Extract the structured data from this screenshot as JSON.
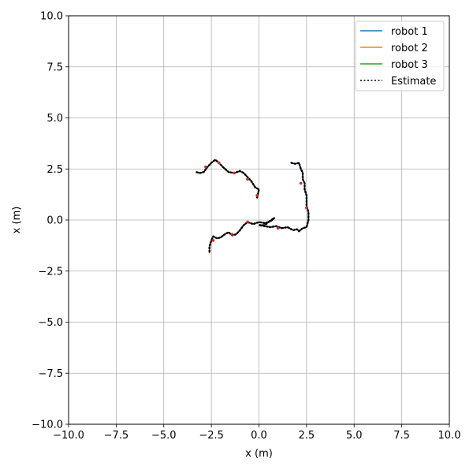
{
  "chart_data": {
    "type": "line",
    "title": "",
    "xlabel": "x (m)",
    "ylabel": "x (m)",
    "xlim": [
      -10,
      10
    ],
    "ylim": [
      -10,
      10
    ],
    "grid": true,
    "legend_position": "top-right",
    "xticks": [
      -10,
      -7.5,
      -5,
      -2.5,
      0,
      2.5,
      5,
      7.5,
      10
    ],
    "yticks": [
      -10,
      -7.5,
      -5,
      -2.5,
      0,
      2.5,
      5,
      7.5,
      10
    ],
    "xtick_labels": [
      "−10.0",
      "−7.5",
      "−5.0",
      "−2.5",
      "0.0",
      "2.5",
      "5.0",
      "7.5",
      "10.0"
    ],
    "ytick_labels": [
      "−10.0",
      "−7.5",
      "−5.0",
      "−2.5",
      "0.0",
      "2.5",
      "5.0",
      "7.5",
      "10.0"
    ],
    "series": [
      {
        "name": "robot 1",
        "color": "#1f77b4",
        "style": "solid",
        "x": [
          0.0,
          0.3,
          0.6,
          0.9,
          1.2,
          1.5,
          1.8,
          2.0,
          2.1,
          2.3,
          2.5,
          2.6,
          2.6,
          2.5,
          2.5,
          2.4,
          2.4,
          2.3,
          2.3,
          2.2,
          2.1,
          1.9,
          1.7
        ],
        "y": [
          -0.25,
          -0.3,
          -0.35,
          -0.3,
          -0.4,
          -0.35,
          -0.5,
          -0.45,
          -0.55,
          -0.4,
          -0.35,
          0.0,
          0.4,
          0.7,
          1.2,
          1.5,
          1.8,
          2.0,
          2.3,
          2.5,
          2.8,
          2.75,
          2.8
        ]
      },
      {
        "name": "robot 2",
        "color": "#ff7f0e",
        "style": "solid",
        "x": [
          0.8,
          0.7,
          0.5,
          0.3,
          0.0,
          -0.3,
          -0.6,
          -0.8,
          -1.0,
          -1.2,
          -1.4,
          -1.6,
          -1.8,
          -2.0,
          -2.2,
          -2.4,
          -2.5,
          -2.6,
          -2.6
        ],
        "y": [
          0.1,
          0.0,
          -0.1,
          -0.15,
          -0.1,
          -0.2,
          -0.1,
          -0.25,
          -0.5,
          -0.7,
          -0.75,
          -0.6,
          -0.7,
          -0.85,
          -0.9,
          -0.8,
          -1.0,
          -1.3,
          -1.6
        ]
      },
      {
        "name": "robot 3",
        "color": "#2ca02c",
        "style": "solid",
        "x": [
          -0.1,
          0.0,
          -0.2,
          -0.4,
          -0.6,
          -0.8,
          -1.0,
          -1.3,
          -1.6,
          -1.9,
          -2.1,
          -2.3,
          -2.5,
          -2.7,
          -2.9,
          -3.1,
          -3.3
        ],
        "y": [
          1.1,
          1.5,
          1.6,
          1.9,
          2.1,
          2.3,
          2.4,
          2.3,
          2.35,
          2.6,
          2.8,
          2.95,
          2.8,
          2.6,
          2.35,
          2.3,
          2.35
        ]
      },
      {
        "name": "Estimate",
        "color": "#000000",
        "style": "dotted",
        "x": [
          1.7,
          1.9,
          2.1,
          2.2,
          2.3,
          2.3,
          2.4,
          2.4,
          2.5,
          2.5,
          2.6,
          2.6,
          2.5,
          2.3,
          2.1,
          2.0,
          1.8,
          1.5,
          1.2,
          0.9,
          0.6,
          0.3,
          0.0,
          0.3,
          0.5,
          0.7,
          0.8,
          0.5,
          0.3,
          0.0,
          -0.3,
          -0.6,
          -0.8,
          -1.0,
          -1.2,
          -1.4,
          -1.6,
          -1.8,
          -2.0,
          -2.2,
          -2.4,
          -2.5,
          -2.6,
          -2.6
        ],
        "y": [
          2.8,
          2.75,
          2.8,
          2.5,
          2.3,
          2.0,
          1.8,
          1.5,
          1.2,
          0.7,
          0.4,
          0.0,
          -0.35,
          -0.4,
          -0.55,
          -0.45,
          -0.5,
          -0.35,
          -0.4,
          -0.3,
          -0.35,
          -0.3,
          -0.25,
          -0.25,
          -0.1,
          0.0,
          0.1,
          -0.1,
          -0.15,
          -0.1,
          -0.2,
          -0.1,
          -0.25,
          -0.5,
          -0.7,
          -0.75,
          -0.6,
          -0.7,
          -0.85,
          -0.9,
          -0.8,
          -1.0,
          -1.3,
          -1.6
        ]
      },
      {
        "name": "",
        "color": "#000000",
        "style": "dotted",
        "x": [
          -0.1,
          0.0,
          -0.2,
          -0.4,
          -0.6,
          -0.8,
          -1.0,
          -1.3,
          -1.6,
          -1.9,
          -2.1,
          -2.3,
          -2.5,
          -2.7,
          -2.9,
          -3.1,
          -3.3
        ],
        "y": [
          1.1,
          1.5,
          1.6,
          1.9,
          2.1,
          2.3,
          2.4,
          2.3,
          2.35,
          2.6,
          2.8,
          2.95,
          2.8,
          2.6,
          2.35,
          2.3,
          2.35
        ]
      }
    ],
    "markers": {
      "color": "#d62728",
      "x": [
        2.2,
        2.5,
        1.0,
        -0.6,
        -1.4,
        -2.4,
        -2.8,
        -1.3,
        -2.1,
        -0.6,
        -0.1
      ],
      "y": [
        1.8,
        0.6,
        -0.4,
        -0.1,
        -0.7,
        -1.0,
        2.6,
        2.3,
        2.8,
        2.0,
        1.2
      ]
    }
  }
}
